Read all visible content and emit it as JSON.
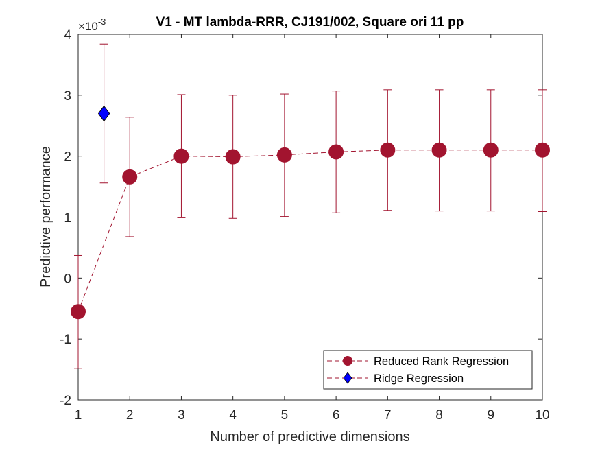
{
  "chart_data": {
    "type": "line",
    "title": "V1 - MT lambda-RRR, CJ191/002, Square ori 11 pp",
    "xlabel": "Number of predictive dimensions",
    "ylabel": "Predictive performance",
    "y_exponent_label": "×10",
    "y_exponent_power": "-3",
    "xlim": [
      1,
      10
    ],
    "ylim": [
      -2,
      4
    ],
    "xticks": [
      "1",
      "2",
      "3",
      "4",
      "5",
      "6",
      "7",
      "8",
      "9",
      "10"
    ],
    "yticks": [
      "-2",
      "-1",
      "0",
      "1",
      "2",
      "3",
      "4"
    ],
    "grid": false,
    "legend_placement": "bottom-right",
    "series": [
      {
        "name": "Reduced Rank Regression",
        "color": "#A2142F",
        "marker": "circle",
        "x": [
          1,
          2,
          3,
          4,
          5,
          6,
          7,
          8,
          9,
          10
        ],
        "y": [
          -0.55,
          1.66,
          2.0,
          1.99,
          2.02,
          2.07,
          2.1,
          2.1,
          2.1,
          2.1
        ],
        "err_low": [
          -1.48,
          0.68,
          0.99,
          0.98,
          1.01,
          1.07,
          1.11,
          1.1,
          1.1,
          1.09
        ],
        "err_high": [
          0.37,
          2.64,
          3.01,
          3.0,
          3.02,
          3.07,
          3.09,
          3.09,
          3.09,
          3.09
        ]
      },
      {
        "name": "Ridge Regression",
        "color": "#0000FF",
        "marker": "diamond",
        "x": [
          1.5
        ],
        "y": [
          2.7
        ],
        "err_low": [
          1.56
        ],
        "err_high": [
          3.84
        ]
      }
    ]
  }
}
